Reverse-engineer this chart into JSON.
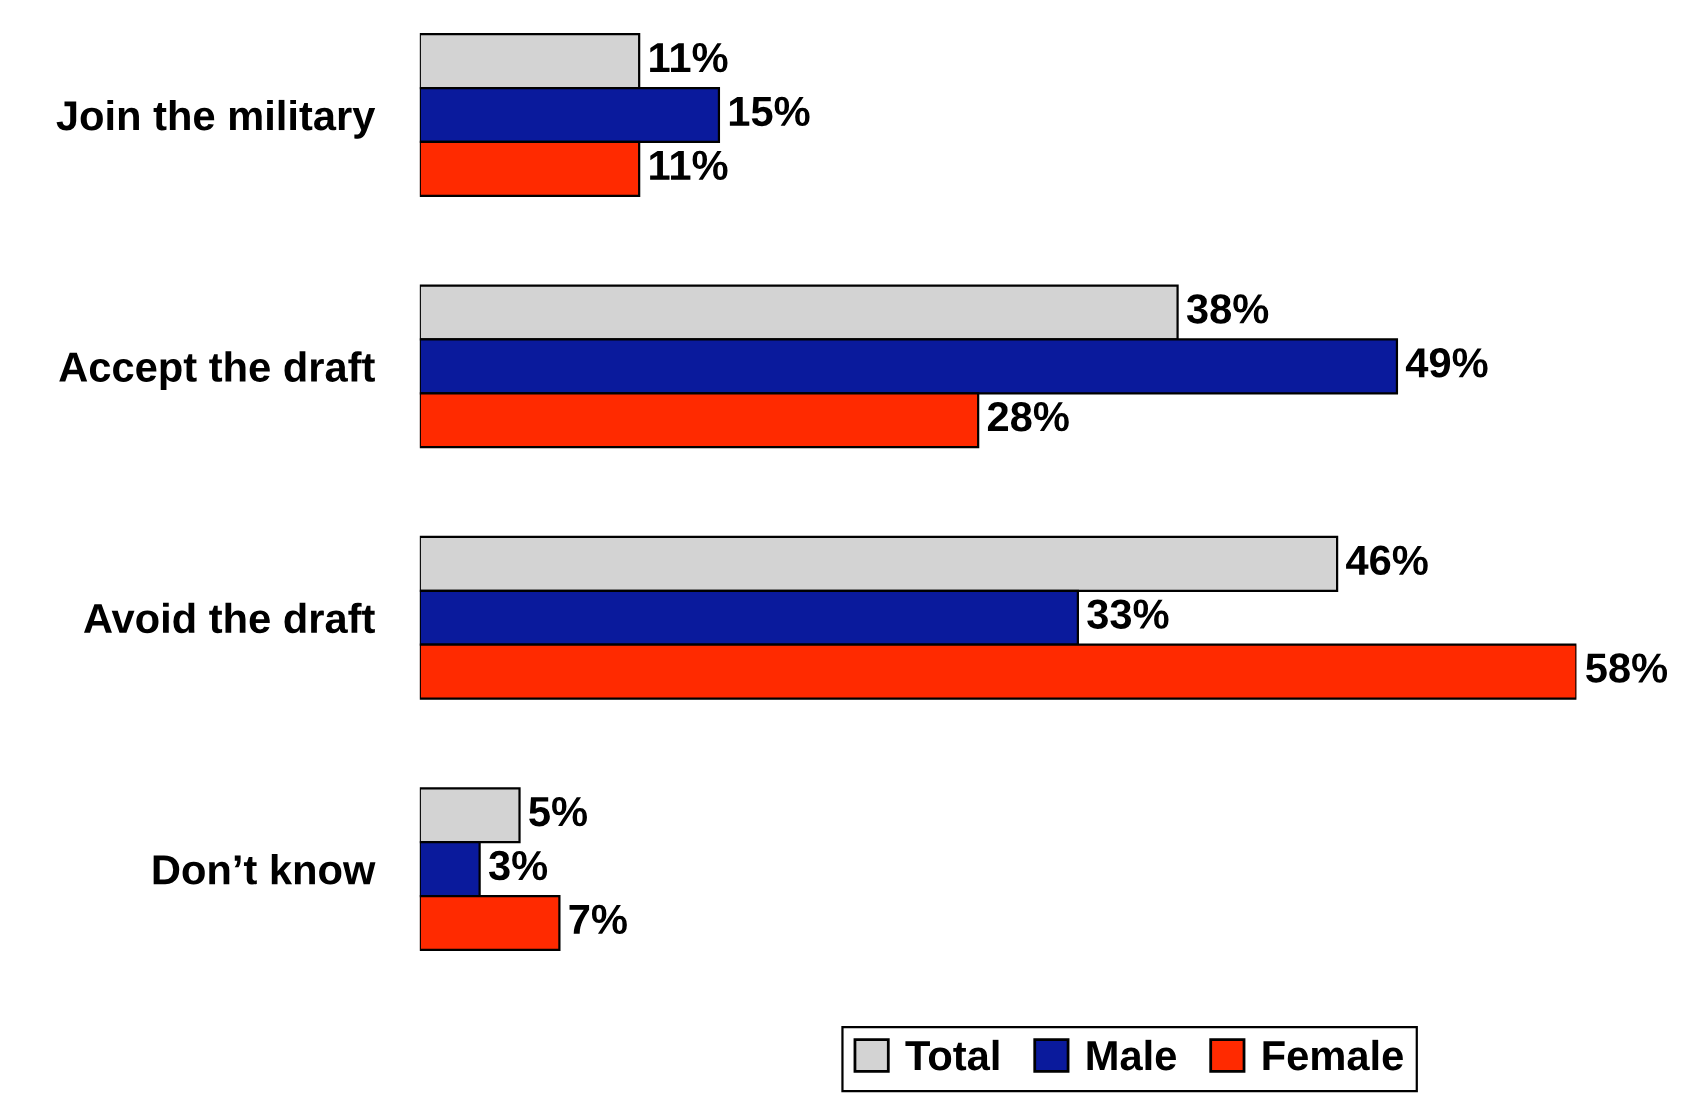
{
  "chart_data": {
    "type": "bar",
    "orientation": "horizontal",
    "categories": [
      "Join the military",
      "Accept the draft",
      "Avoid the draft",
      "Don’t know"
    ],
    "series": [
      {
        "name": "Total",
        "color": "#d3d3d3",
        "values": [
          11,
          38,
          46,
          5
        ],
        "value_labels": [
          "11%",
          "38%",
          "46%",
          "5%"
        ]
      },
      {
        "name": "Male",
        "color": "#0a1a9c",
        "values": [
          15,
          49,
          33,
          3
        ],
        "value_labels": [
          "15%",
          "49%",
          "33%",
          "3%"
        ]
      },
      {
        "name": "Female",
        "color": "#ff2a00",
        "values": [
          11,
          28,
          58,
          7
        ],
        "value_labels": [
          "11%",
          "28%",
          "58%",
          "7%"
        ]
      }
    ],
    "legend": "bottom",
    "grid": false
  }
}
